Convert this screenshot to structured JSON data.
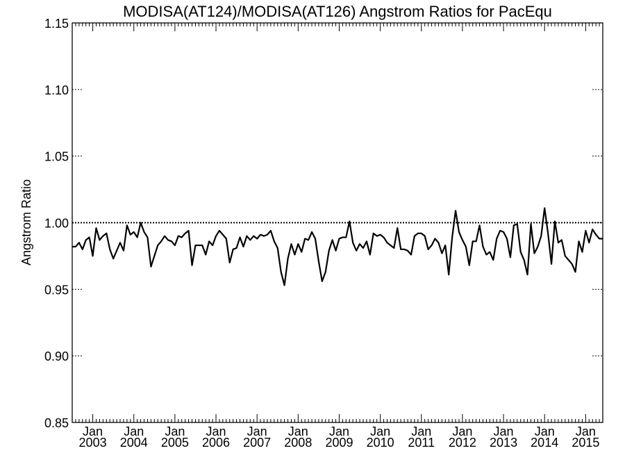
{
  "chart_data": {
    "type": "line",
    "title": "MODISA(AT124)/MODISA(AT126)  Angstrom Ratios for PacEqu",
    "xlabel": "",
    "ylabel": "Angstrom Ratio",
    "ylim": [
      0.85,
      1.15
    ],
    "xlim": [
      "2002-07",
      "2015-06"
    ],
    "yticks": [
      "0.85",
      "0.90",
      "0.95",
      "1.00",
      "1.05",
      "1.10",
      "1.15"
    ],
    "xticks": [
      {
        "month": "Jan",
        "year": "2003",
        "date": "2003-01"
      },
      {
        "month": "Jan",
        "year": "2004",
        "date": "2004-01"
      },
      {
        "month": "Jan",
        "year": "2005",
        "date": "2005-01"
      },
      {
        "month": "Jan",
        "year": "2006",
        "date": "2006-01"
      },
      {
        "month": "Jan",
        "year": "2007",
        "date": "2007-01"
      },
      {
        "month": "Jan",
        "year": "2008",
        "date": "2008-01"
      },
      {
        "month": "Jan",
        "year": "2009",
        "date": "2009-01"
      },
      {
        "month": "Jan",
        "year": "2010",
        "date": "2010-01"
      },
      {
        "month": "Jan",
        "year": "2011",
        "date": "2011-01"
      },
      {
        "month": "Jan",
        "year": "2012",
        "date": "2012-01"
      },
      {
        "month": "Jan",
        "year": "2013",
        "date": "2013-01"
      },
      {
        "month": "Jan",
        "year": "2014",
        "date": "2014-01"
      },
      {
        "month": "Jan",
        "year": "2015",
        "date": "2015-01"
      }
    ],
    "reference_line": {
      "y": 1.0,
      "style": "dotted"
    },
    "grid": false,
    "start": "2002-07",
    "series": [
      {
        "color": "#000000",
        "values": [
          0.982,
          0.982,
          0.985,
          0.98,
          0.987,
          0.989,
          0.975,
          0.996,
          0.987,
          0.99,
          0.992,
          0.98,
          0.973,
          0.979,
          0.985,
          0.979,
          0.998,
          0.991,
          0.993,
          0.989,
          1.0,
          0.993,
          0.989,
          0.967,
          0.975,
          0.983,
          0.986,
          0.99,
          0.987,
          0.986,
          0.983,
          0.99,
          0.989,
          0.992,
          0.994,
          0.968,
          0.983,
          0.983,
          0.983,
          0.976,
          0.986,
          0.983,
          0.99,
          0.994,
          0.991,
          0.988,
          0.97,
          0.98,
          0.981,
          0.989,
          0.982,
          0.99,
          0.987,
          0.99,
          0.988,
          0.991,
          0.99,
          0.991,
          0.994,
          0.986,
          0.981,
          0.963,
          0.953,
          0.973,
          0.984,
          0.976,
          0.984,
          0.978,
          0.988,
          0.987,
          0.993,
          0.988,
          0.971,
          0.956,
          0.963,
          0.979,
          0.987,
          0.979,
          0.988,
          0.989,
          0.989,
          1.001,
          0.985,
          0.979,
          0.984,
          0.981,
          0.986,
          0.976,
          0.992,
          0.99,
          0.991,
          0.989,
          0.985,
          0.983,
          0.981,
          0.996,
          0.98,
          0.98,
          0.979,
          0.976,
          0.99,
          0.992,
          0.992,
          0.99,
          0.98,
          0.983,
          0.988,
          0.985,
          0.977,
          0.983,
          0.961,
          0.989,
          1.009,
          0.993,
          0.987,
          0.982,
          0.968,
          0.986,
          0.986,
          0.998,
          0.982,
          0.976,
          0.978,
          0.972,
          0.988,
          0.994,
          0.993,
          0.988,
          0.974,
          0.998,
          0.999,
          0.978,
          0.972,
          0.961,
          0.999,
          0.977,
          0.982,
          0.99,
          1.011,
          0.992,
          0.969,
          1.001,
          0.985,
          0.987,
          0.975,
          0.972,
          0.969,
          0.963,
          0.986,
          0.978,
          0.994,
          0.985,
          0.995,
          0.991,
          0.988,
          0.988
        ]
      }
    ]
  }
}
